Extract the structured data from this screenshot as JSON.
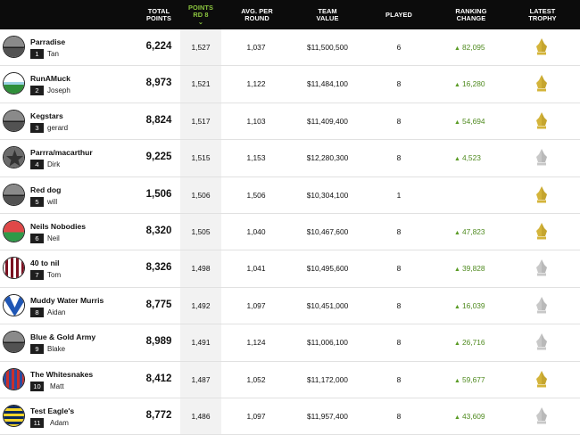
{
  "header": {
    "columns": [
      {
        "id": "total",
        "label": "TOTAL\nPOINTS"
      },
      {
        "id": "round",
        "label": "POINTS\nRD 8",
        "sort_icon": "chevron-down-icon"
      },
      {
        "id": "avg",
        "label": "AVG. PER\nROUND"
      },
      {
        "id": "value",
        "label": "TEAM\nVALUE"
      },
      {
        "id": "played",
        "label": "PLAYED"
      },
      {
        "id": "change",
        "label": "RANKING\nCHANGE"
      },
      {
        "id": "trophy",
        "label": "LATEST\nTROPHY"
      }
    ]
  },
  "colors": {
    "header_bg": "#0c0c0c",
    "active_header": "#8cc63f",
    "change_green": "#4f8a1f",
    "trophy_gold": "#d4b43a",
    "trophy_silver": "#c8c8c8"
  },
  "rows": [
    {
      "rank": "1",
      "team": "Parradise",
      "coach": "Tan",
      "total": "6,224",
      "round": "1,527",
      "avg": "1,037",
      "value": "$11,500,500",
      "played": "6",
      "change": "82,095",
      "trophy": "gold",
      "avatar": "half-grey"
    },
    {
      "rank": "2",
      "team": "RunAMuck",
      "coach": "Joseph",
      "total": "8,973",
      "round": "1,521",
      "avg": "1,122",
      "value": "$11,484,100",
      "played": "8",
      "change": "16,280",
      "trophy": "gold",
      "avatar": "sky-grass"
    },
    {
      "rank": "3",
      "team": "Kegstars",
      "coach": "gerard",
      "total": "8,824",
      "round": "1,517",
      "avg": "1,103",
      "value": "$11,409,400",
      "played": "8",
      "change": "54,694",
      "trophy": "gold",
      "avatar": "half-grey"
    },
    {
      "rank": "4",
      "team": "Parrra/macarthur",
      "coach": "Dirk",
      "total": "9,225",
      "round": "1,515",
      "avg": "1,153",
      "value": "$12,280,300",
      "played": "8",
      "change": "4,523",
      "trophy": "silver",
      "avatar": "star"
    },
    {
      "rank": "5",
      "team": "Red dog",
      "coach": "will",
      "total": "1,506",
      "round": "1,506",
      "avg": "1,506",
      "value": "$10,304,100",
      "played": "1",
      "change": "",
      "trophy": "gold",
      "avatar": "half-grey"
    },
    {
      "rank": "6",
      "team": "Neils Nobodies",
      "coach": "Neil",
      "total": "8,320",
      "round": "1,505",
      "avg": "1,040",
      "value": "$10,467,600",
      "played": "8",
      "change": "47,823",
      "trophy": "gold",
      "avatar": "red-green"
    },
    {
      "rank": "7",
      "team": "40 to nil",
      "coach": "Tom",
      "total": "8,326",
      "round": "1,498",
      "avg": "1,041",
      "value": "$10,495,600",
      "played": "8",
      "change": "39,828",
      "trophy": "silver",
      "avatar": "maroon-stripes"
    },
    {
      "rank": "8",
      "team": "Muddy Water Murris",
      "coach": "Aidan",
      "total": "8,775",
      "round": "1,492",
      "avg": "1,097",
      "value": "$10,451,000",
      "played": "8",
      "change": "16,039",
      "trophy": "silver",
      "avatar": "blue-v"
    },
    {
      "rank": "9",
      "team": "Blue & Gold Army",
      "coach": "Blake",
      "total": "8,989",
      "round": "1,491",
      "avg": "1,124",
      "value": "$11,006,100",
      "played": "8",
      "change": "26,716",
      "trophy": "silver",
      "avatar": "half-grey"
    },
    {
      "rank": "10",
      "team": "The Whitesnakes",
      "coach": "Matt",
      "total": "8,412",
      "round": "1,487",
      "avg": "1,052",
      "value": "$11,172,000",
      "played": "8",
      "change": "59,677",
      "trophy": "gold",
      "avatar": "blue-red-stripes"
    },
    {
      "rank": "11",
      "team": "Test Eagle's",
      "coach": "Adam",
      "total": "8,772",
      "round": "1,486",
      "avg": "1,097",
      "value": "$11,957,400",
      "played": "8",
      "change": "43,609",
      "trophy": "silver",
      "avatar": "yellow-navy-hoops"
    }
  ]
}
